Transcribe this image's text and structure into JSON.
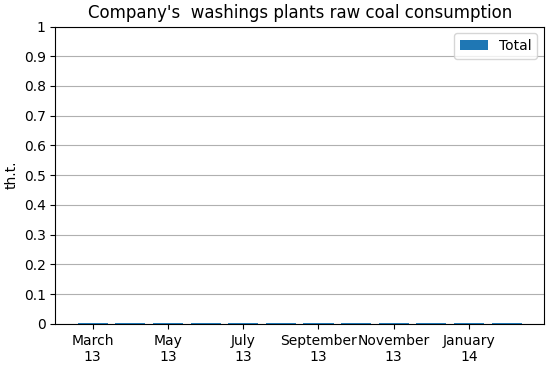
{
  "chart_data": {
    "type": "bar",
    "title": "Company's  washings plants raw coal consumption",
    "ylabel": "th.t.",
    "categories": [
      "March\n13",
      null,
      "May\n13",
      null,
      "July\n13",
      null,
      "September\n13",
      null,
      "November\n13",
      null,
      "January\n14",
      null
    ],
    "series": [
      {
        "name": "Total",
        "values": [
          0.004,
          0.004,
          0.004,
          0.004,
          0.004,
          0.004,
          0.004,
          0.004,
          0.004,
          0.004,
          0.004,
          0.004
        ]
      }
    ],
    "ylim": [
      0,
      1
    ],
    "yticks": [
      0,
      0.1,
      0.2,
      0.3,
      0.4,
      0.5,
      0.6,
      0.7,
      0.8,
      0.9,
      1
    ],
    "grid": true,
    "legend": "upper right"
  }
}
